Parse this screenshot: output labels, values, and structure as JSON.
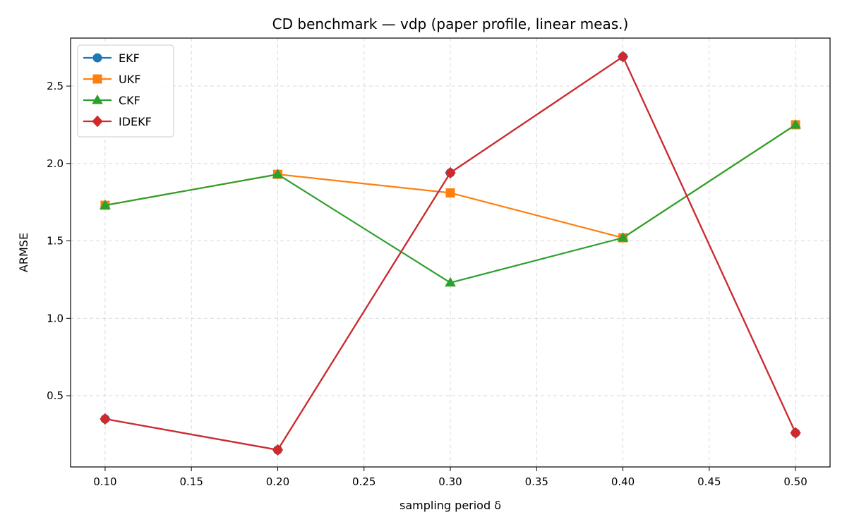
{
  "chart_data": {
    "type": "line",
    "title": "CD benchmark — vdp (paper profile, linear meas.)",
    "xlabel": "sampling period δ",
    "ylabel": "ARMSE",
    "x": [
      0.1,
      0.2,
      0.3,
      0.4,
      0.5
    ],
    "xlim": [
      0.08,
      0.52
    ],
    "ylim": [
      0.04,
      2.81
    ],
    "xticks": [
      0.1,
      0.15,
      0.2,
      0.25,
      0.3,
      0.35,
      0.4,
      0.45,
      0.5
    ],
    "xtick_labels": [
      "0.10",
      "0.15",
      "0.20",
      "0.25",
      "0.30",
      "0.35",
      "0.40",
      "0.45",
      "0.50"
    ],
    "yticks": [
      0.5,
      1.0,
      1.5,
      2.0,
      2.5
    ],
    "ytick_labels": [
      "0.5",
      "1.0",
      "1.5",
      "2.0",
      "2.5"
    ],
    "grid": true,
    "legend_position": "top-left",
    "series": [
      {
        "name": "EKF",
        "color": "#1f77b4",
        "marker": "circle",
        "values": [
          0.35,
          0.15,
          1.94,
          2.69,
          0.26
        ]
      },
      {
        "name": "UKF",
        "color": "#ff7f0e",
        "marker": "square",
        "values": [
          1.73,
          1.93,
          1.81,
          1.52,
          2.25
        ]
      },
      {
        "name": "CKF",
        "color": "#2ca02c",
        "marker": "triangle",
        "values": [
          1.73,
          1.93,
          1.23,
          1.52,
          2.25
        ]
      },
      {
        "name": "IDEKF",
        "color": "#d62728",
        "marker": "diamond",
        "values": [
          0.35,
          0.15,
          1.94,
          2.69,
          0.26
        ]
      }
    ]
  }
}
